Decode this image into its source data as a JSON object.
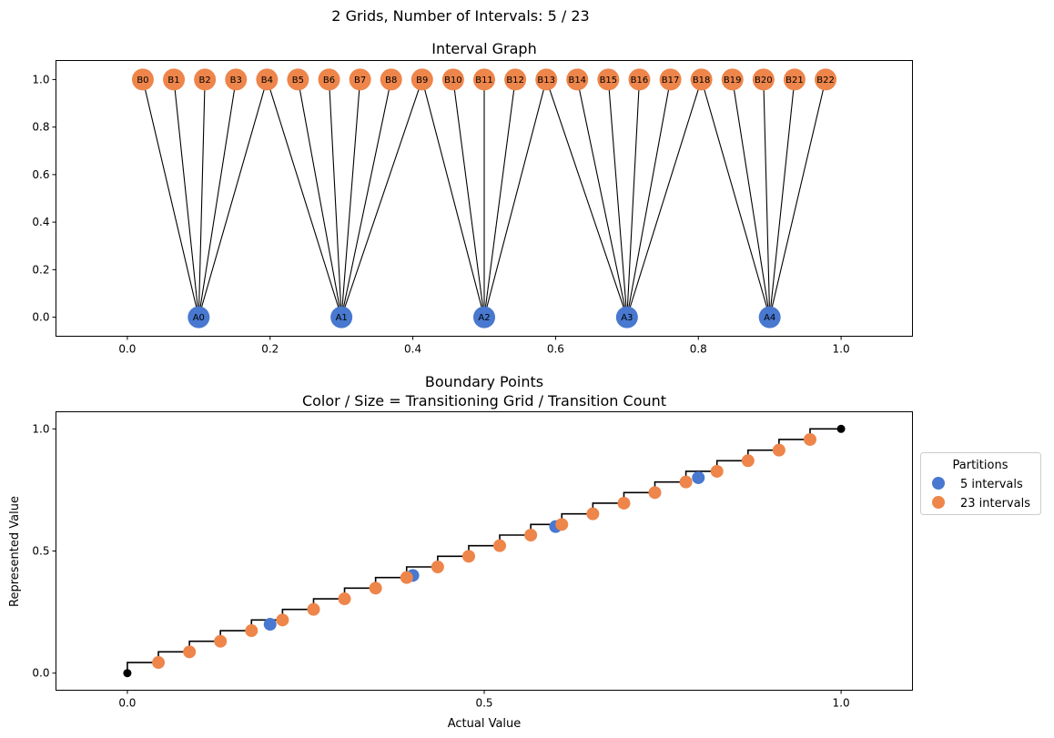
{
  "suptitle": "2 Grids, Number of Intervals: 5 / 23",
  "colors": {
    "grid_a": "#4878cf",
    "grid_b": "#ee854a",
    "endpoint": "#000000",
    "edge": "#000000"
  },
  "chart_data": [
    {
      "type": "network",
      "title": "Interval Graph",
      "xlabel": "",
      "ylabel": "",
      "xlim": [
        -0.1,
        1.1
      ],
      "ylim": [
        -0.08,
        1.08
      ],
      "xticks": [
        0.0,
        0.2,
        0.4,
        0.6,
        0.8,
        1.0
      ],
      "xtick_labels": [
        "0.0",
        "0.2",
        "0.4",
        "0.6",
        "0.8",
        "1.0"
      ],
      "yticks": [
        0.0,
        0.2,
        0.4,
        0.6,
        0.8,
        1.0
      ],
      "ytick_labels": [
        "0.0",
        "0.2",
        "0.4",
        "0.6",
        "0.8",
        "1.0"
      ],
      "nodes_a": [
        {
          "label": "A0",
          "x": 0.1,
          "y": 0.0
        },
        {
          "label": "A1",
          "x": 0.3,
          "y": 0.0
        },
        {
          "label": "A2",
          "x": 0.5,
          "y": 0.0
        },
        {
          "label": "A3",
          "x": 0.7,
          "y": 0.0
        },
        {
          "label": "A4",
          "x": 0.9,
          "y": 0.0
        }
      ],
      "nodes_b": [
        {
          "label": "B0",
          "x": 0.0217,
          "y": 1.0
        },
        {
          "label": "B1",
          "x": 0.0652,
          "y": 1.0
        },
        {
          "label": "B2",
          "x": 0.1087,
          "y": 1.0
        },
        {
          "label": "B3",
          "x": 0.1522,
          "y": 1.0
        },
        {
          "label": "B4",
          "x": 0.1957,
          "y": 1.0
        },
        {
          "label": "B5",
          "x": 0.2391,
          "y": 1.0
        },
        {
          "label": "B6",
          "x": 0.2826,
          "y": 1.0
        },
        {
          "label": "B7",
          "x": 0.3261,
          "y": 1.0
        },
        {
          "label": "B8",
          "x": 0.3696,
          "y": 1.0
        },
        {
          "label": "B9",
          "x": 0.413,
          "y": 1.0
        },
        {
          "label": "B10",
          "x": 0.4565,
          "y": 1.0
        },
        {
          "label": "B11",
          "x": 0.5,
          "y": 1.0
        },
        {
          "label": "B12",
          "x": 0.5435,
          "y": 1.0
        },
        {
          "label": "B13",
          "x": 0.587,
          "y": 1.0
        },
        {
          "label": "B14",
          "x": 0.6304,
          "y": 1.0
        },
        {
          "label": "B15",
          "x": 0.6739,
          "y": 1.0
        },
        {
          "label": "B16",
          "x": 0.7174,
          "y": 1.0
        },
        {
          "label": "B17",
          "x": 0.7609,
          "y": 1.0
        },
        {
          "label": "B18",
          "x": 0.8043,
          "y": 1.0
        },
        {
          "label": "B19",
          "x": 0.8478,
          "y": 1.0
        },
        {
          "label": "B20",
          "x": 0.8913,
          "y": 1.0
        },
        {
          "label": "B21",
          "x": 0.9348,
          "y": 1.0
        },
        {
          "label": "B22",
          "x": 0.9783,
          "y": 1.0
        }
      ],
      "edges": [
        [
          "A0",
          "B0"
        ],
        [
          "A0",
          "B1"
        ],
        [
          "A0",
          "B2"
        ],
        [
          "A0",
          "B3"
        ],
        [
          "A0",
          "B4"
        ],
        [
          "A1",
          "B4"
        ],
        [
          "A1",
          "B5"
        ],
        [
          "A1",
          "B6"
        ],
        [
          "A1",
          "B7"
        ],
        [
          "A1",
          "B8"
        ],
        [
          "A1",
          "B9"
        ],
        [
          "A2",
          "B9"
        ],
        [
          "A2",
          "B10"
        ],
        [
          "A2",
          "B11"
        ],
        [
          "A2",
          "B12"
        ],
        [
          "A2",
          "B13"
        ],
        [
          "A3",
          "B13"
        ],
        [
          "A3",
          "B14"
        ],
        [
          "A3",
          "B15"
        ],
        [
          "A3",
          "B16"
        ],
        [
          "A3",
          "B17"
        ],
        [
          "A3",
          "B18"
        ],
        [
          "A4",
          "B18"
        ],
        [
          "A4",
          "B19"
        ],
        [
          "A4",
          "B20"
        ],
        [
          "A4",
          "B21"
        ],
        [
          "A4",
          "B22"
        ]
      ]
    },
    {
      "type": "scatter",
      "title": "Boundary Points\nColor / Size = Transitioning Grid / Transition Count",
      "title_lines": [
        "Boundary Points",
        "Color / Size = Transitioning Grid / Transition Count"
      ],
      "xlabel": "Actual Value",
      "ylabel": "Represented Value",
      "xlim": [
        -0.1,
        1.1
      ],
      "ylim": [
        -0.07,
        1.07
      ],
      "xticks": [
        0.0,
        0.5,
        1.0
      ],
      "xtick_labels": [
        "0.0",
        "0.5",
        "1.0"
      ],
      "yticks": [
        0.0,
        0.5,
        1.0
      ],
      "ytick_labels": [
        "0.0",
        "0.5",
        "1.0"
      ],
      "legend": {
        "title": "Partitions",
        "placement": "right-outside",
        "entries": [
          {
            "label": "5 intervals",
            "series": "grid_a"
          },
          {
            "label": "23 intervals",
            "series": "grid_b"
          }
        ]
      },
      "series": [
        {
          "name": "5 intervals",
          "color_key": "grid_a",
          "points": [
            [
              0.2,
              0.2
            ],
            [
              0.4,
              0.4
            ],
            [
              0.6,
              0.6
            ],
            [
              0.8,
              0.8
            ]
          ]
        },
        {
          "name": "23 intervals",
          "color_key": "grid_b",
          "points": [
            [
              0.0435,
              0.0435
            ],
            [
              0.087,
              0.087
            ],
            [
              0.1304,
              0.1304
            ],
            [
              0.1739,
              0.1739
            ],
            [
              0.2174,
              0.2174
            ],
            [
              0.2609,
              0.2609
            ],
            [
              0.3043,
              0.3043
            ],
            [
              0.3478,
              0.3478
            ],
            [
              0.3913,
              0.3913
            ],
            [
              0.4348,
              0.4348
            ],
            [
              0.4783,
              0.4783
            ],
            [
              0.5217,
              0.5217
            ],
            [
              0.5652,
              0.5652
            ],
            [
              0.6087,
              0.6087
            ],
            [
              0.6522,
              0.6522
            ],
            [
              0.6957,
              0.6957
            ],
            [
              0.7391,
              0.7391
            ],
            [
              0.7826,
              0.7826
            ],
            [
              0.8261,
              0.8261
            ],
            [
              0.8696,
              0.8696
            ],
            [
              0.913,
              0.913
            ],
            [
              0.9565,
              0.9565
            ]
          ]
        }
      ],
      "endpoints": [
        [
          0.0,
          0.0
        ],
        [
          1.0,
          1.0
        ]
      ],
      "step_y": [
        0.0,
        0.0435,
        0.087,
        0.1304,
        0.1739,
        0.2174,
        0.2609,
        0.3043,
        0.3478,
        0.3913,
        0.4348,
        0.4783,
        0.5217,
        0.5652,
        0.6087,
        0.6522,
        0.6957,
        0.7391,
        0.7826,
        0.8261,
        0.8696,
        0.913,
        0.9565,
        1.0
      ]
    }
  ]
}
